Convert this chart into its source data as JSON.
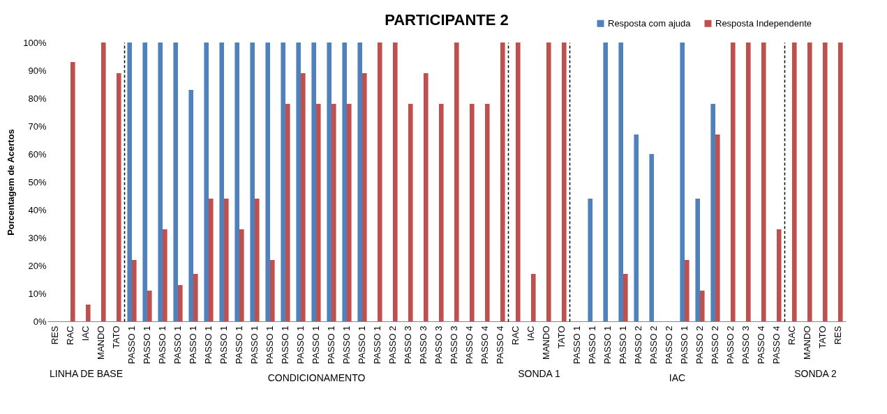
{
  "chart_data": [
    {
      "type": "bar",
      "ylabel": "Porcentagem de Acertos",
      "xlabel": "LINHA DE BASE",
      "categories": [
        "RES",
        "RAC",
        "IAC",
        "MANDO",
        "TATO"
      ],
      "ylim": [
        0,
        100
      ],
      "yticks": [
        {
          "value": 0,
          "label": "0%"
        },
        {
          "value": 10,
          "label": "10%"
        },
        {
          "value": 20,
          "label": "20%"
        },
        {
          "value": 30,
          "label": "30%"
        },
        {
          "value": 40,
          "label": "40%"
        },
        {
          "value": 50,
          "label": "50%"
        },
        {
          "value": 60,
          "label": "60%"
        },
        {
          "value": 70,
          "label": "70%"
        },
        {
          "value": 80,
          "label": "80%"
        },
        {
          "value": 90,
          "label": "90%"
        },
        {
          "value": 100,
          "label": "100%"
        }
      ],
      "series": [
        {
          "color": "#4f81bd",
          "values": [
            null,
            null,
            null,
            null,
            null
          ]
        },
        {
          "color": "#c0504d",
          "values": [
            null,
            93,
            6,
            100,
            89
          ]
        }
      ]
    },
    {
      "type": "bar",
      "title": "PARTICIPANTE 2",
      "xlabel": "CONDICIONAMENTO",
      "tick_labels": "x",
      "categories": [
        "PASSO 1",
        "PASSO 1",
        "PASSO 1",
        "PASSO 1",
        "PASSO 1",
        "PASSO 1",
        "PASSO 1",
        "PASSO 1",
        "PASSO 1",
        "PASSO 1",
        "PASSO 1",
        "PASSO 1",
        "PASSO 1",
        "PASSO 1",
        "PASSO 1",
        "PASSO 1",
        "PASSO 1",
        "PASSO 2",
        "PASSO 3",
        "PASSO 3",
        "PASSO 3",
        "PASSO 3",
        "PASSO 4",
        "PASSO 4",
        "PASSO 4"
      ],
      "ylim": [
        0,
        100
      ],
      "series": [
        {
          "color": "#4f81bd",
          "values": [
            100,
            100,
            100,
            100,
            83,
            100,
            100,
            100,
            100,
            100,
            100,
            100,
            100,
            100,
            100,
            100,
            null,
            null,
            null,
            null,
            null,
            null,
            null,
            null,
            null
          ]
        },
        {
          "color": "#c0504d",
          "values": [
            22,
            11,
            33,
            13,
            17,
            44,
            44,
            33,
            44,
            22,
            78,
            89,
            78,
            78,
            78,
            89,
            100,
            100,
            78,
            89,
            78,
            100,
            78,
            78,
            100
          ]
        }
      ]
    },
    {
      "type": "bar",
      "xlabel": "SONDA 1",
      "tick_labels": "x",
      "categories": [
        "RAC",
        "IAC",
        "MANDO",
        "TATO"
      ],
      "ylim": [
        0,
        100
      ],
      "series": [
        {
          "color": "#4f81bd",
          "values": [
            null,
            null,
            null,
            null
          ]
        },
        {
          "color": "#c0504d",
          "values": [
            100,
            17,
            100,
            100
          ]
        }
      ]
    },
    {
      "type": "bar",
      "xlabel": "IAC",
      "tick_labels": "x",
      "legend": "top right",
      "categories": [
        "PASSO 1",
        "PASSO 1",
        "PASSO 1",
        "PASSO 1",
        "PASSO 2",
        "PASSO 2",
        "PASSO 2",
        "PASSO 1",
        "PASSO 2",
        "PASSO 2",
        "PASSO 2",
        "PASSO 3",
        "PASSO 4",
        "PASSO 4"
      ],
      "ylim": [
        0,
        100
      ],
      "series": [
        {
          "name": "Resposta com ajuda",
          "color": "#4f81bd",
          "values": [
            null,
            44,
            100,
            100,
            67,
            60,
            null,
            100,
            44,
            78,
            null,
            null,
            null,
            null
          ]
        },
        {
          "name": "Resposta Independente",
          "color": "#c0504d",
          "values": [
            null,
            null,
            null,
            17,
            null,
            null,
            null,
            22,
            11,
            67,
            100,
            100,
            100,
            33
          ]
        }
      ]
    },
    {
      "type": "bar",
      "xlabel": "SONDA 2",
      "tick_labels": "x",
      "categories": [
        "RAC",
        "MANDO",
        "TATO",
        "RES"
      ],
      "ylim": [
        0,
        100
      ],
      "series": [
        {
          "color": "#4f81bd",
          "values": [
            null,
            null,
            null,
            null
          ]
        },
        {
          "color": "#c0504d",
          "values": [
            100,
            100,
            100,
            100
          ]
        }
      ]
    }
  ]
}
